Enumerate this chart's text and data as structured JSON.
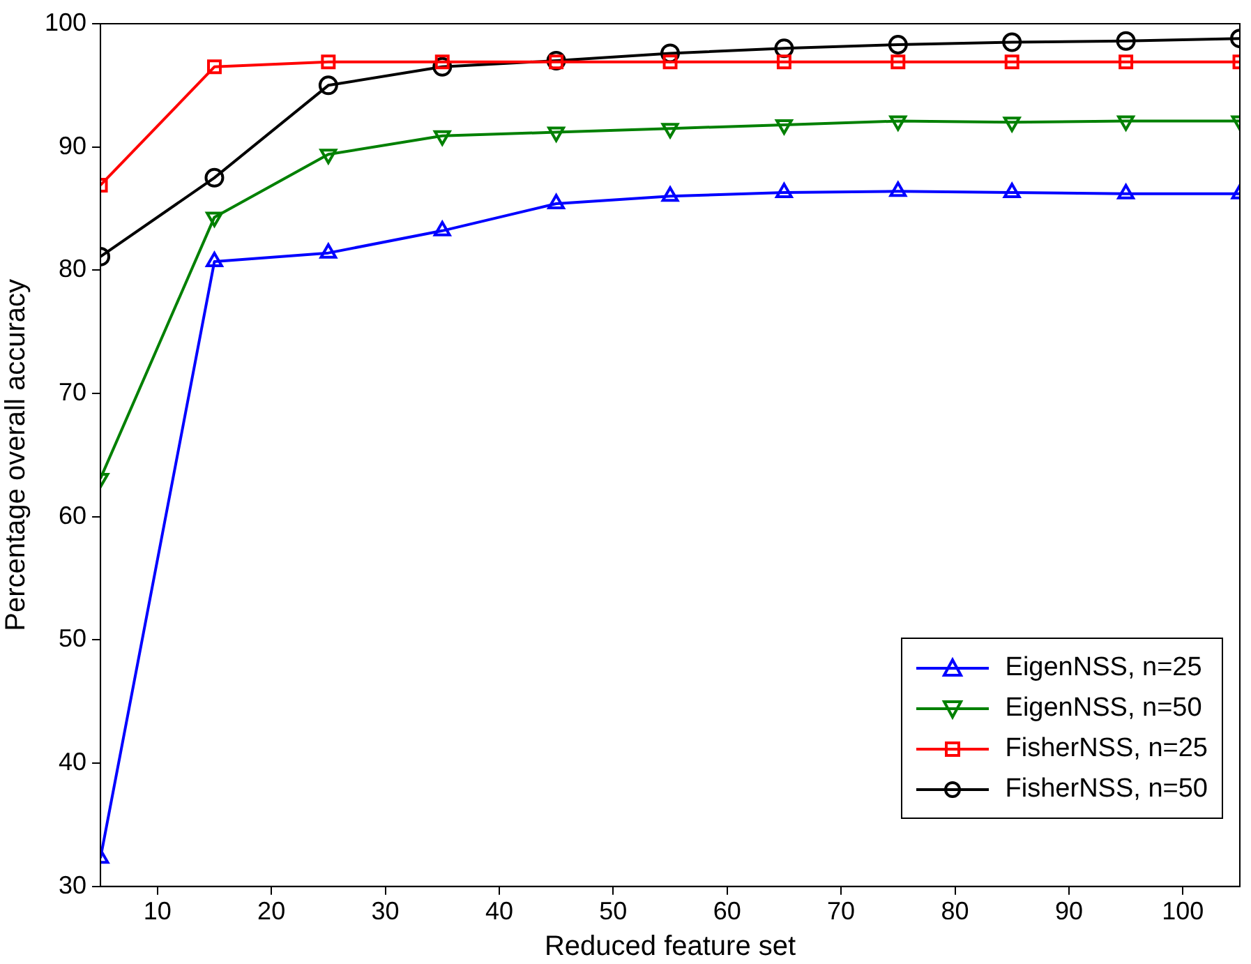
{
  "chart_data": {
    "type": "line",
    "xlabel": "Reduced feature set",
    "ylabel": "Percentage overall accuracy",
    "xlim": [
      5,
      105
    ],
    "xticks": [
      10,
      20,
      30,
      40,
      50,
      60,
      70,
      80,
      90,
      100
    ],
    "ylim": [
      30,
      100
    ],
    "yticks": [
      30,
      40,
      50,
      60,
      70,
      80,
      90,
      100
    ],
    "grid": false,
    "legend": "bottom right",
    "line_style": "solid",
    "x": [
      5,
      15,
      25,
      35,
      45,
      55,
      65,
      75,
      85,
      95,
      105
    ],
    "series": [
      {
        "name": "EigenNSS, n=25",
        "color": "#0000ff",
        "marker": "triangle",
        "values": [
          32.3,
          80.7,
          81.4,
          83.2,
          85.4,
          86.0,
          86.3,
          86.4,
          86.3,
          86.2,
          86.2
        ]
      },
      {
        "name": "EigenNSS, n=50",
        "color": "#008000",
        "marker": "triangle_down",
        "values": [
          63.1,
          84.3,
          89.4,
          90.9,
          91.2,
          91.5,
          91.8,
          92.1,
          92.0,
          92.1,
          92.1
        ]
      },
      {
        "name": "FisherNSS, n=25",
        "color": "#ff0000",
        "marker": "square",
        "values": [
          86.9,
          96.5,
          96.9,
          96.9,
          96.9,
          96.9,
          96.9,
          96.9,
          96.9,
          96.9,
          96.9
        ]
      },
      {
        "name": "FisherNSS, n=50",
        "color": "#000000",
        "marker": "circle",
        "values": [
          81.1,
          87.5,
          95.0,
          96.5,
          97.0,
          97.6,
          98.0,
          98.3,
          98.5,
          98.6,
          98.8
        ]
      }
    ]
  }
}
